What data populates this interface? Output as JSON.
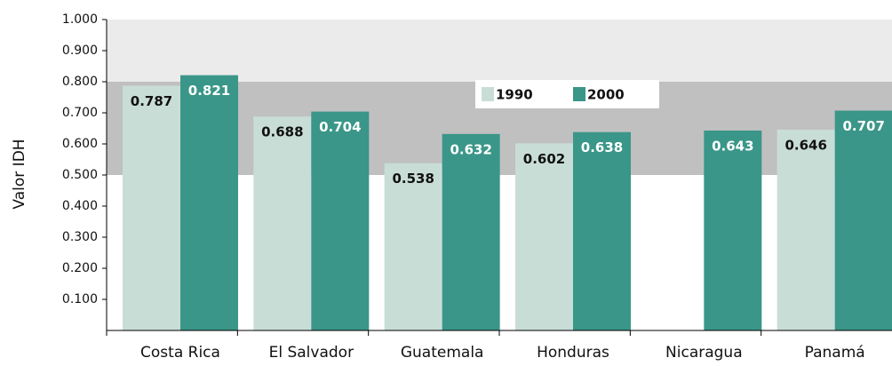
{
  "chart_data": {
    "type": "bar",
    "y_label": "Valor IDH",
    "categories": [
      "Costa Rica",
      "El Salvador",
      "Guatemala",
      "Honduras",
      "Nicaragua",
      "Panamá"
    ],
    "series": [
      {
        "name": "1990",
        "color": "#c9ddd7",
        "label_color": "#111111",
        "values": [
          0.787,
          0.688,
          0.538,
          0.602,
          null,
          0.646
        ]
      },
      {
        "name": "2000",
        "color": "#3a9688",
        "label_color": "#ffffff",
        "values": [
          0.821,
          0.704,
          0.632,
          0.638,
          0.643,
          0.707
        ]
      }
    ],
    "ylim": [
      0,
      1
    ],
    "yticks": [
      {
        "value": 0.1,
        "label": "0.100"
      },
      {
        "value": 0.2,
        "label": "0.200"
      },
      {
        "value": 0.3,
        "label": "0.300"
      },
      {
        "value": 0.4,
        "label": "0.400"
      },
      {
        "value": 0.5,
        "label": "0.500"
      },
      {
        "value": 0.6,
        "label": "0.600"
      },
      {
        "value": 0.7,
        "label": "0.700"
      },
      {
        "value": 0.8,
        "label": "0.800"
      },
      {
        "value": 0.9,
        "label": "0.900"
      },
      {
        "value": 1,
        "label": "1.000"
      }
    ],
    "bands": [
      {
        "from": 0.8,
        "to": 1,
        "color": "#ebebeb"
      },
      {
        "from": 0.5,
        "to": 0.8,
        "color": "#c0c0c0"
      }
    ]
  }
}
